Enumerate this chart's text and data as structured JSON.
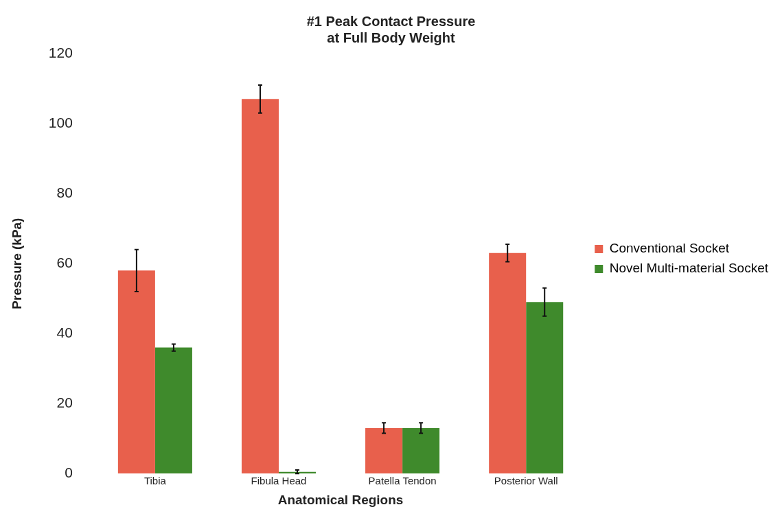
{
  "chart_data": {
    "type": "bar",
    "title": "#1 Peak Contact Pressure\nat Full Body Weight",
    "xlabel": "Anatomical Regions",
    "ylabel": "Pressure (kPa)",
    "categories": [
      "Tibia",
      "Fibula Head",
      "Patella Tendon",
      "Posterior Wall"
    ],
    "series": [
      {
        "name": "Conventional Socket",
        "color": "#e8604c",
        "values": [
          58,
          107,
          13,
          63
        ],
        "errors": [
          6,
          4,
          1.5,
          2.5
        ]
      },
      {
        "name": "Novel Multi-material Socket",
        "color": "#3f8a2c",
        "values": [
          36,
          0.5,
          13,
          49
        ],
        "errors": [
          1,
          0.5,
          1.5,
          4
        ]
      }
    ],
    "ylim": [
      0,
      120
    ],
    "yticks": [
      0,
      20,
      40,
      60,
      80,
      100,
      120
    ],
    "grid": false,
    "legend": "right"
  }
}
